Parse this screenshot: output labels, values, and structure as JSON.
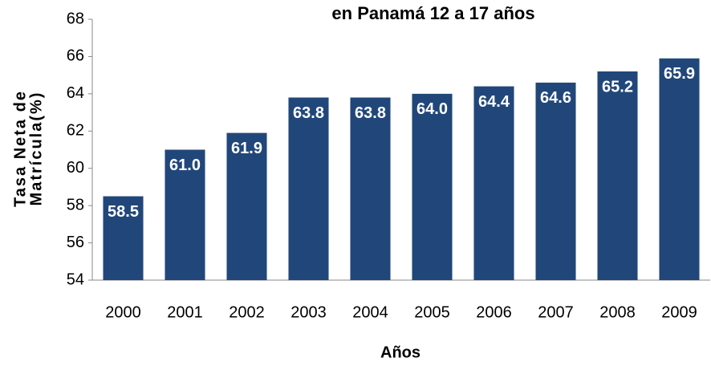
{
  "chart_data": {
    "type": "bar",
    "title": "en Panamá 12 a 17 años",
    "y_label": [
      "Tasa Neta de",
      "Matrícula(%)"
    ],
    "x_label": "Años",
    "categories": [
      "2000",
      "2001",
      "2002",
      "2003",
      "2004",
      "2005",
      "2006",
      "2007",
      "2008",
      "2009"
    ],
    "values": [
      58.5,
      61,
      61.9,
      63.8,
      63.8,
      64,
      64.4,
      64.6,
      65.2,
      65.9
    ],
    "value_labels": [
      "58.5",
      "61.0",
      "61.9",
      "63.8",
      "63.8",
      "64.0",
      "64.4",
      "64.6",
      "65.2",
      "65.9"
    ],
    "color": "#21477a",
    "ylim": [
      54,
      68
    ],
    "yticks": [
      54,
      56,
      58,
      60,
      62,
      64,
      66,
      68
    ],
    "grid": false
  }
}
